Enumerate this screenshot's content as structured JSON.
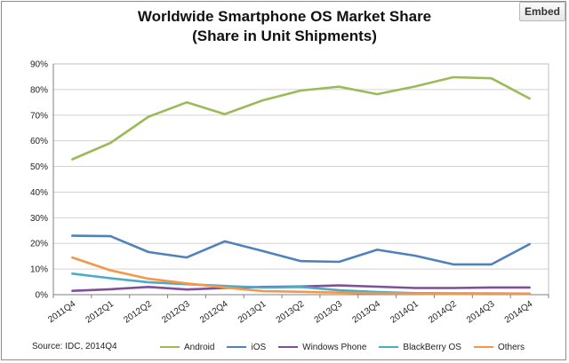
{
  "embed_label": "Embed",
  "chart_data": {
    "type": "line",
    "title_line1": "Worldwide Smartphone OS Market Share",
    "title_line2": "(Share in Unit Shipments)",
    "categories": [
      "2011Q4",
      "2012Q1",
      "2012Q2",
      "2012Q3",
      "2012Q4",
      "2013Q1",
      "2013Q2",
      "2013Q3",
      "2013Q4",
      "2014Q1",
      "2014Q2",
      "2014Q3",
      "2014Q4"
    ],
    "y_ticks": [
      "0%",
      "10%",
      "20%",
      "30%",
      "40%",
      "50%",
      "60%",
      "70%",
      "80%",
      "90%"
    ],
    "ylim": [
      0,
      90
    ],
    "grid": true,
    "legend_position": "bottom",
    "source": "Source: IDC, 2014Q4",
    "series": [
      {
        "name": "Android",
        "color": "#9bbb59",
        "values": [
          52.8,
          59.2,
          69.4,
          75.0,
          70.4,
          75.8,
          79.6,
          81.1,
          78.2,
          81.2,
          84.8,
          84.4,
          76.5
        ]
      },
      {
        "name": "iOS",
        "color": "#4f81bd",
        "values": [
          23.0,
          22.8,
          16.6,
          14.5,
          20.8,
          17.0,
          13.1,
          12.8,
          17.5,
          15.2,
          11.8,
          11.8,
          19.7
        ]
      },
      {
        "name": "Windows Phone",
        "color": "#7f4f9c",
        "values": [
          1.5,
          2.1,
          3.0,
          2.0,
          2.6,
          3.0,
          3.2,
          3.6,
          3.1,
          2.6,
          2.6,
          2.8,
          2.8
        ]
      },
      {
        "name": "BlackBerry OS",
        "color": "#4bacc6",
        "values": [
          8.2,
          6.4,
          4.8,
          4.1,
          3.4,
          2.8,
          3.0,
          1.7,
          1.0,
          0.6,
          0.5,
          0.5,
          0.4
        ]
      },
      {
        "name": "Others",
        "color": "#f79646",
        "values": [
          14.5,
          9.5,
          6.2,
          4.4,
          2.8,
          1.4,
          1.1,
          0.8,
          0.5,
          0.4,
          0.3,
          0.4,
          0.4
        ]
      }
    ]
  }
}
